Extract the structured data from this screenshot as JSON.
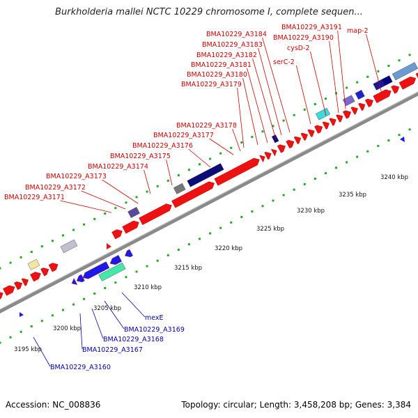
{
  "title": "Burkholderia mallei NCTC 10229 chromosome I, complete sequen...",
  "footer": {
    "accession": "Accession: NC_008836",
    "summary": "Topology: circular; Length: 3,458,208 bp; Genes: 3,384"
  },
  "colors": {
    "forward_gene": "#ee1111",
    "reverse_gene": "#1a1aee",
    "forward_label": "#cc0000",
    "reverse_label": "#0000aa",
    "backbone": "#8a8a8a",
    "gc_dots": "#22aa22"
  },
  "ticks": [
    "3195 kbp",
    "3200 kbp",
    "3205 kbp",
    "3210 kbp",
    "3215 kbp",
    "3220 kbp",
    "3225 kbp",
    "3230 kbp",
    "3235 kbp",
    "3240 kbp"
  ],
  "forward_labels": [
    "BMA10229_A3171",
    "BMA10229_A3172",
    "BMA10229_A3173",
    "BMA10229_A3174",
    "BMA10229_A3175",
    "BMA10229_A3176",
    "BMA10229_A3177",
    "BMA10229_A3178",
    "BMA10229_A3179",
    "BMA10229_A3180",
    "BMA10229_A3181",
    "BMA10229_A3182",
    "BMA10229_A3183",
    "BMA10229_A3184",
    "serC-2",
    "cysD-2",
    "BMA10229_A3190",
    "BMA10229_A3191",
    "map-2"
  ],
  "reverse_labels": [
    "mexE",
    "BMA10229_A3169",
    "BMA10229_A3168",
    "BMA10229_A3167",
    "BMA10229_A3160"
  ]
}
